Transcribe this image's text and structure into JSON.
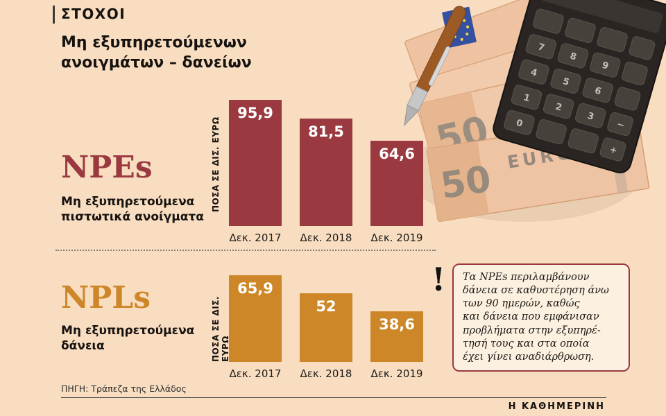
{
  "page": {
    "kicker": "ΣΤΟΧΟΙ",
    "title": "Μη εξυπηρετούμενων\nανοιγμάτων – δανείων",
    "source": "ΠΗΓΗ: Τράπεζα της Ελλάδος",
    "brand": "Η ΚΑΘΗΜΕΡΙΝΗ"
  },
  "colors": {
    "background": "#f8ddc1",
    "npe_bar": "#9a3a40",
    "npl_bar": "#cd8728",
    "callout_border": "#9a3a40"
  },
  "sections": {
    "npe": {
      "acronym": "NPEs",
      "label": "Μη εξυπηρετούμενα\nπιστωτικά ανοίγματα"
    },
    "npl": {
      "acronym": "NPLs",
      "label": "Μη εξυπηρετούμενα\nδάνεια"
    }
  },
  "chart_data": [
    {
      "type": "bar",
      "title": "NPEs – Μη εξυπηρετούμενα πιστωτικά ανοίγματα",
      "categories": [
        "Δεκ. 2017",
        "Δεκ. 2018",
        "Δεκ. 2019"
      ],
      "values": [
        95.9,
        81.5,
        64.6
      ],
      "value_labels": [
        "95,9",
        "81,5",
        "64,6"
      ],
      "xlabel": "",
      "ylabel": "ΠΟΣΑ ΣΕ ΔΙΣ. ΕΥΡΩ",
      "ylim": [
        0,
        100
      ],
      "bar_color": "#9a3a40",
      "grid": false,
      "legend": "none"
    },
    {
      "type": "bar",
      "title": "NPLs – Μη εξυπηρετούμενα δάνεια",
      "categories": [
        "Δεκ. 2017",
        "Δεκ. 2018",
        "Δεκ. 2019"
      ],
      "values": [
        65.9,
        52,
        38.6
      ],
      "value_labels": [
        "65,9",
        "52",
        "38,6"
      ],
      "xlabel": "",
      "ylabel": "ΠΟΣΑ ΣΕ ΔΙΣ. ΕΥΡΩ",
      "ylim": [
        0,
        100
      ],
      "bar_color": "#cd8728",
      "grid": false,
      "legend": "none"
    }
  ],
  "callout": {
    "mark": "!",
    "text": "Τα NPEs περιλαμβάνουν\nδάνεια σε καθυστέρηση άνω\nτων 90 ημερών, καθώς\nκαι δάνεια που εμφάνισαν\nπροβλήματα στην εξυπηρέ-\nτησή τους και στα οποία\nέχει γίνει αναδιάρθρωση."
  },
  "photo": {
    "banknote_value": "50",
    "banknote_currency": "EURO",
    "banknote_value_2": "50",
    "banknote_currency_2": "EURO"
  }
}
